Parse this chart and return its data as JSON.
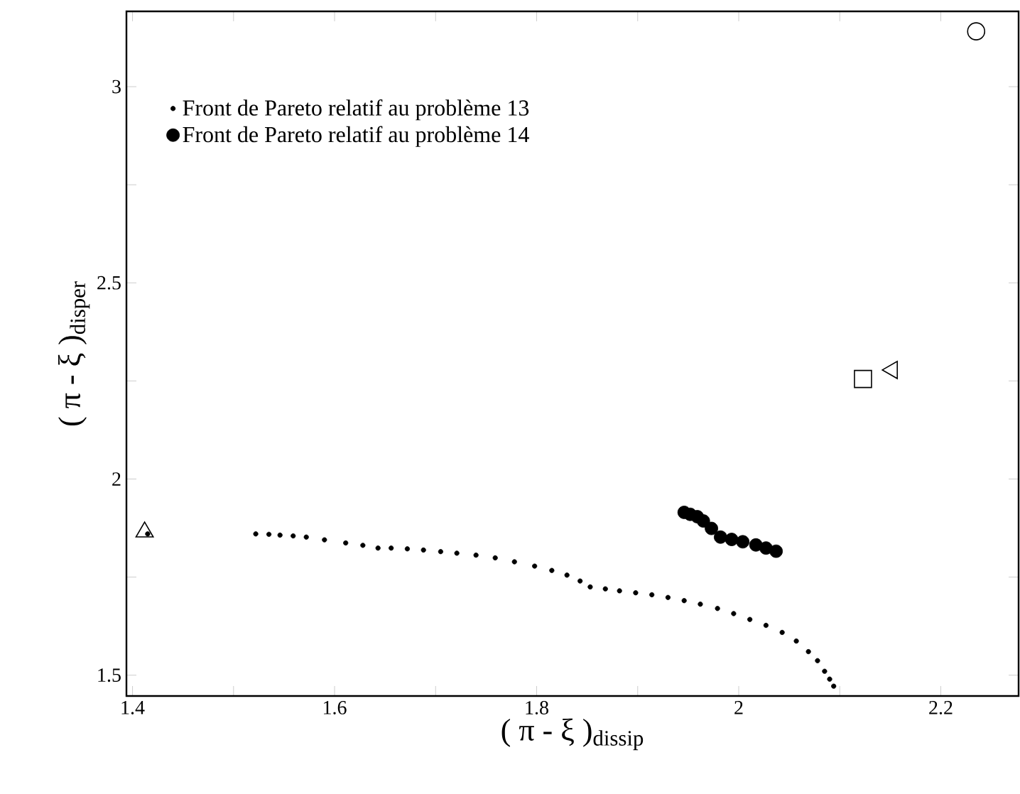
{
  "chart_data": {
    "type": "scatter",
    "xlabel": "( π - ξ )$_{dissip}$",
    "ylabel": "( π - ξ )$_{disper}$",
    "xlim": [
      1.394,
      2.277
    ],
    "ylim": [
      1.447,
      3.192
    ],
    "xticks": [
      1.4,
      {
        "value": 1.5,
        "label": null
      },
      1.6,
      {
        "value": 1.7,
        "label": null
      },
      1.8,
      {
        "value": 1.9,
        "label": null
      },
      2,
      {
        "value": 2.1,
        "label": null
      },
      2.2
    ],
    "yticks": [
      1.5,
      {
        "value": 1.75,
        "label": null
      },
      2,
      {
        "value": 2.25,
        "label": null
      },
      2.5,
      {
        "value": 2.75,
        "label": null
      },
      3
    ],
    "legend": "top left",
    "grid": false,
    "series": [
      {
        "name": "Front de Pareto relatif au problème 13",
        "color": "#000000",
        "marker": "circle",
        "x": [
          1.415,
          1.522,
          1.535,
          1.546,
          1.559,
          1.572,
          1.59,
          1.611,
          1.628,
          1.643,
          1.656,
          1.672,
          1.688,
          1.705,
          1.721,
          1.74,
          1.759,
          1.778,
          1.798,
          1.815,
          1.83,
          1.843,
          1.853,
          1.868,
          1.882,
          1.898,
          1.914,
          1.93,
          1.946,
          1.962,
          1.979,
          1.995,
          2.011,
          2.027,
          2.043,
          2.057,
          2.069,
          2.078,
          2.085,
          2.09,
          2.094
        ],
        "values": [
          1.86,
          1.86,
          1.859,
          1.857,
          1.855,
          1.852,
          1.845,
          1.837,
          1.831,
          1.824,
          1.824,
          1.822,
          1.819,
          1.815,
          1.811,
          1.806,
          1.799,
          1.789,
          1.778,
          1.767,
          1.755,
          1.74,
          1.725,
          1.72,
          1.715,
          1.71,
          1.705,
          1.698,
          1.69,
          1.681,
          1.67,
          1.657,
          1.642,
          1.627,
          1.609,
          1.587,
          1.56,
          1.537,
          1.51,
          1.49,
          1.472
        ]
      },
      {
        "name": "Front de Pareto relatif au problème 14",
        "color": "#000000",
        "marker": "circle",
        "x": [
          1.946,
          1.952,
          1.959,
          1.965,
          1.973,
          1.982,
          1.993,
          2.004,
          2.017,
          2.027,
          2.037
        ],
        "values": [
          1.915,
          1.91,
          1.904,
          1.893,
          1.874,
          1.852,
          1.846,
          1.84,
          1.832,
          1.824,
          1.816
        ]
      },
      {
        "color": "#000000",
        "marker": "circle",
        "x": [
          2.235
        ],
        "values": [
          3.141
        ]
      },
      {
        "color": "#000000",
        "marker": "square",
        "x": [
          2.123
        ],
        "values": [
          2.255
        ]
      },
      {
        "color": "#000000",
        "marker": "triangle",
        "x": [
          2.152
        ],
        "values": [
          2.278
        ]
      },
      {
        "color": "#000000",
        "marker": "triangle",
        "x": [
          1.412
        ],
        "values": [
          1.865
        ]
      }
    ]
  }
}
